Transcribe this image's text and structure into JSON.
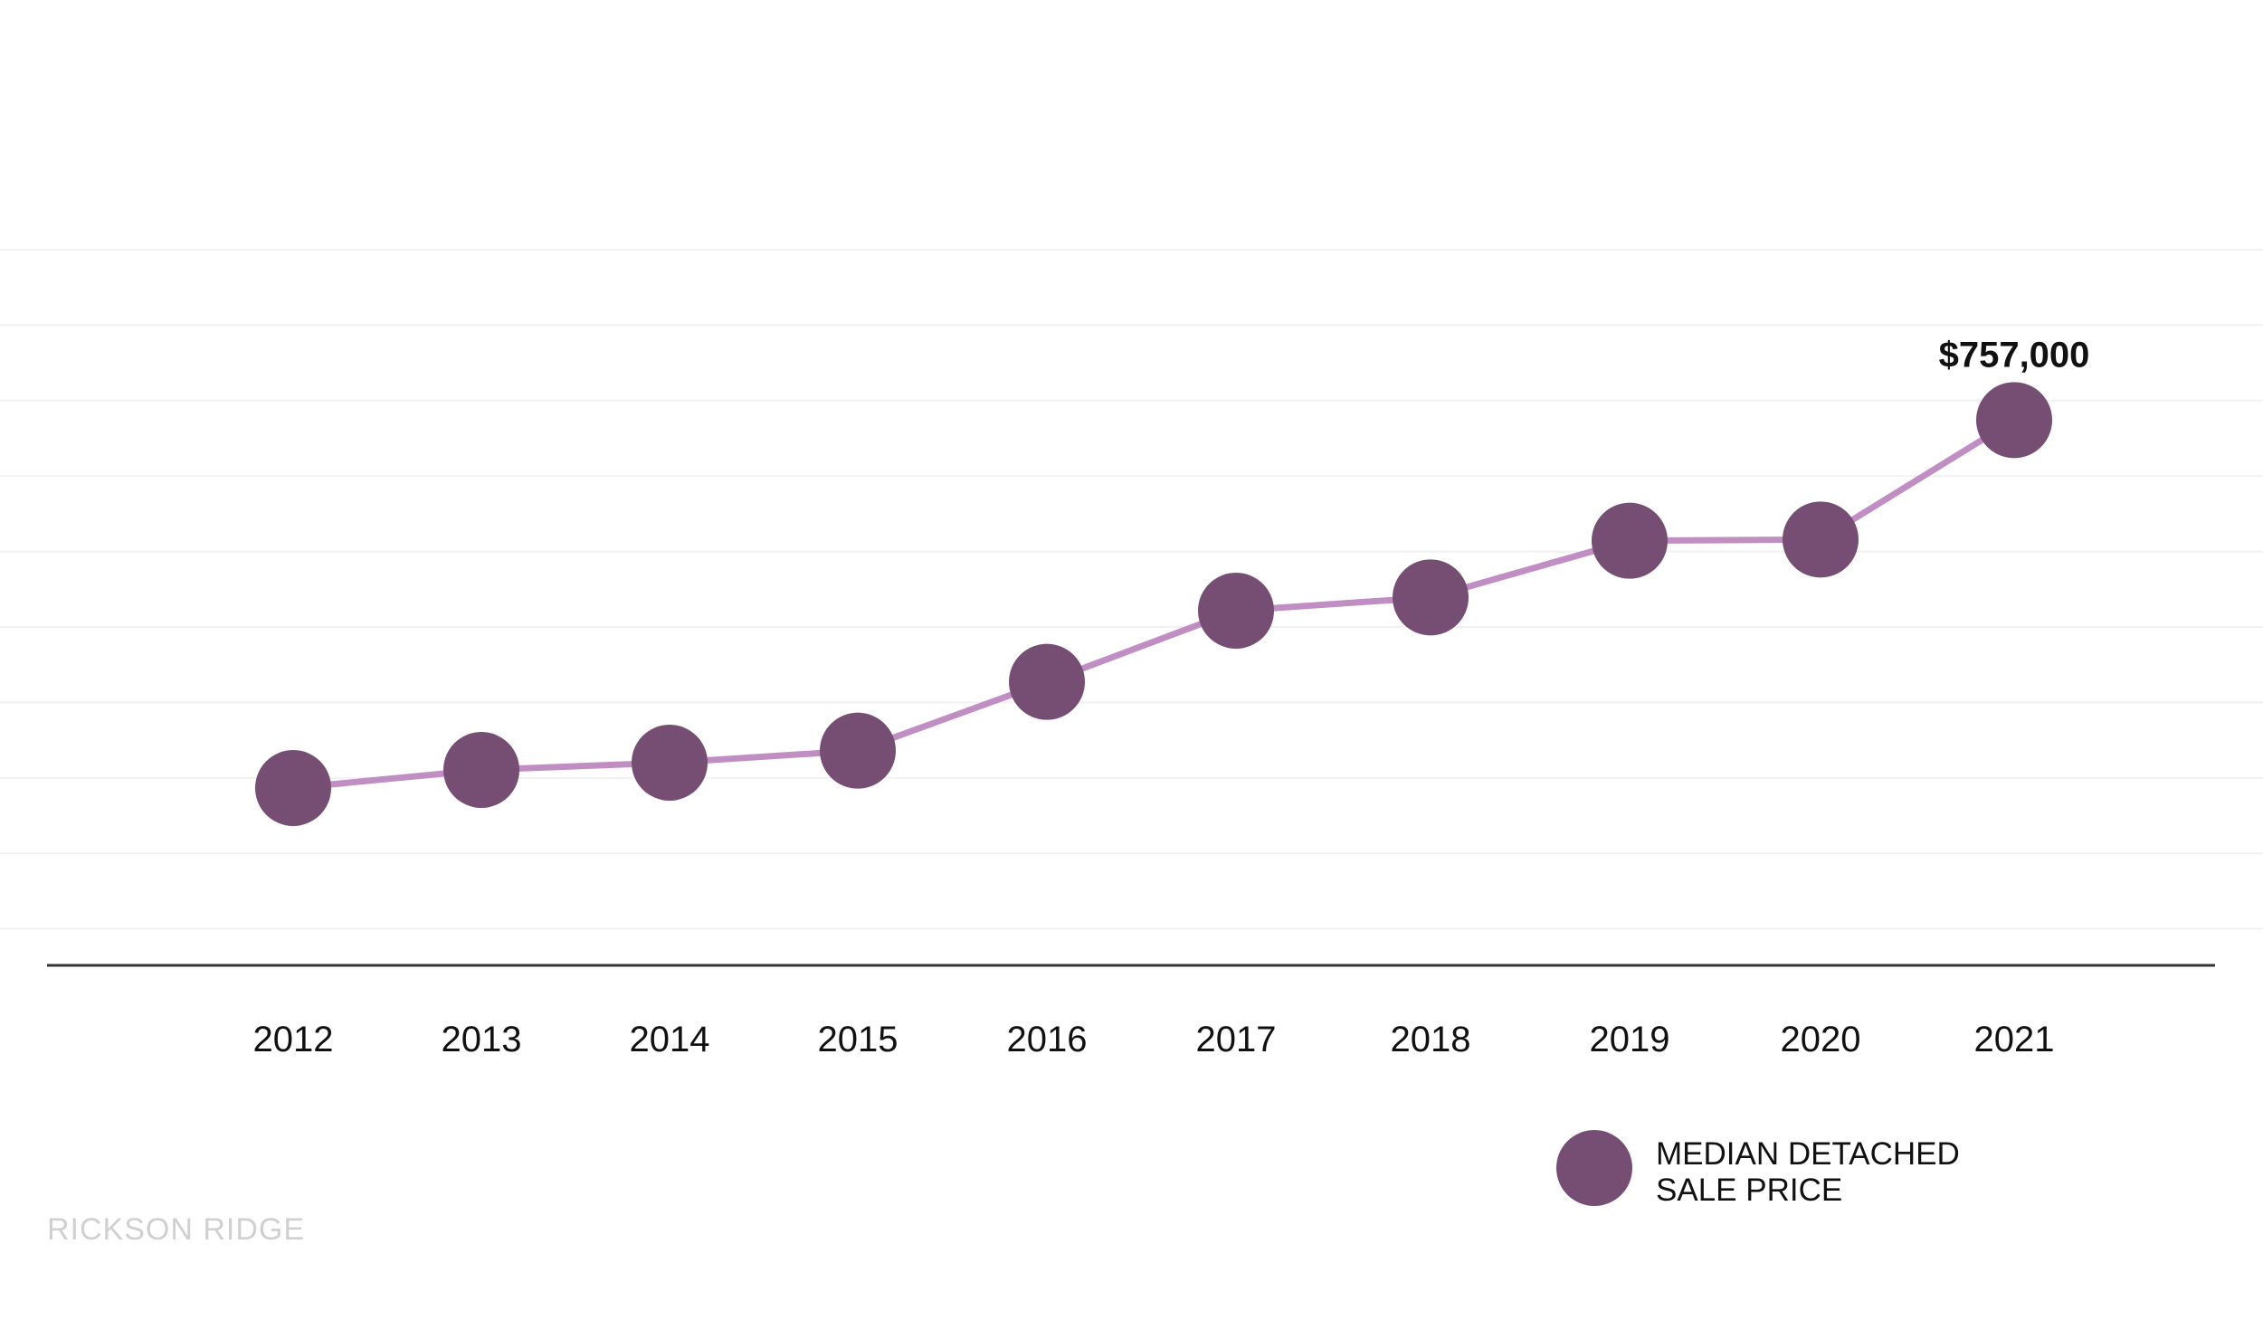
{
  "chart_data": {
    "type": "line",
    "title": "",
    "xlabel": "",
    "ylabel": "",
    "categories": [
      "2012",
      "2013",
      "2014",
      "2015",
      "2016",
      "2017",
      "2018",
      "2019",
      "2020",
      "2021"
    ],
    "series": [
      {
        "name": "MEDIAN DETACHED SALE PRICE",
        "values": [
          452000,
          467000,
          473000,
          483000,
          540000,
          599000,
          610000,
          657000,
          658000,
          757000
        ],
        "color": "#764d73",
        "line_color": "#c08ec3"
      }
    ],
    "ylim": [
      305000,
      890000
    ],
    "y_axis_labels_shown": false,
    "grid": true,
    "legend_position": "bottom-right",
    "annotations": [
      {
        "category": "2021",
        "text": "$757,000"
      }
    ]
  },
  "legend": {
    "line1": "MEDIAN DETACHED",
    "line2": "SALE PRICE"
  },
  "brand": "RICKSON RIDGE"
}
